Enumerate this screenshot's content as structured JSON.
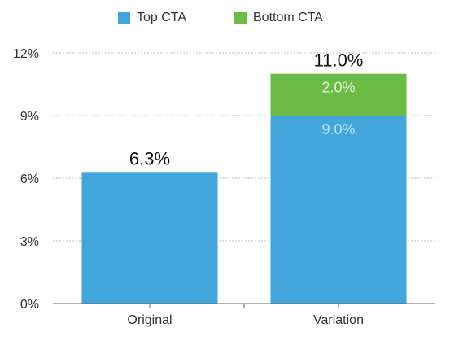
{
  "chart_data": {
    "type": "bar",
    "stacked": true,
    "categories": [
      "Original",
      "Variation"
    ],
    "series": [
      {
        "name": "Top CTA",
        "values": [
          6.3,
          9.0
        ],
        "color": "#42a5db",
        "labels": [
          "",
          "9.0%"
        ]
      },
      {
        "name": "Bottom CTA",
        "values": [
          0,
          2.0
        ],
        "color": "#6cbb45",
        "labels": [
          "",
          "2.0%"
        ]
      }
    ],
    "totals": [
      "6.3%",
      "11.0%"
    ],
    "yticks": [
      "0%",
      "3%",
      "6%",
      "9%",
      "12%"
    ],
    "ytick_values": [
      0,
      3,
      6,
      9,
      12
    ],
    "ylim": [
      0,
      12
    ],
    "grid": true,
    "legend_position": "top-center",
    "title": "",
    "xlabel": "",
    "ylabel": ""
  },
  "colors": {
    "top_label_text": "#b9e6fb",
    "bottom_label_text": "#dff3cf",
    "grid": "#bdbdbd",
    "axis": "#666666"
  }
}
